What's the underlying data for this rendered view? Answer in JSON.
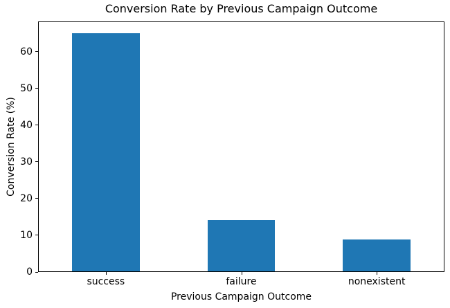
{
  "figure": {
    "background": "#ffffff"
  },
  "chart_data": {
    "type": "bar",
    "title": "Conversion Rate by Previous Campaign Outcome",
    "categories": [
      "success",
      "failure",
      "nonexistent"
    ],
    "values": [
      65.1,
      14.1,
      8.8
    ],
    "xlabel": "Previous Campaign Outcome",
    "ylabel": "Conversion Rate (%)",
    "ylim": [
      0,
      68.3
    ],
    "yticks": [
      0,
      10,
      20,
      30,
      40,
      50,
      60
    ],
    "bar_color": "#1f77b4",
    "bar_width_fraction": 0.5,
    "axis_color": "#000000",
    "grid": false,
    "legend": false
  }
}
